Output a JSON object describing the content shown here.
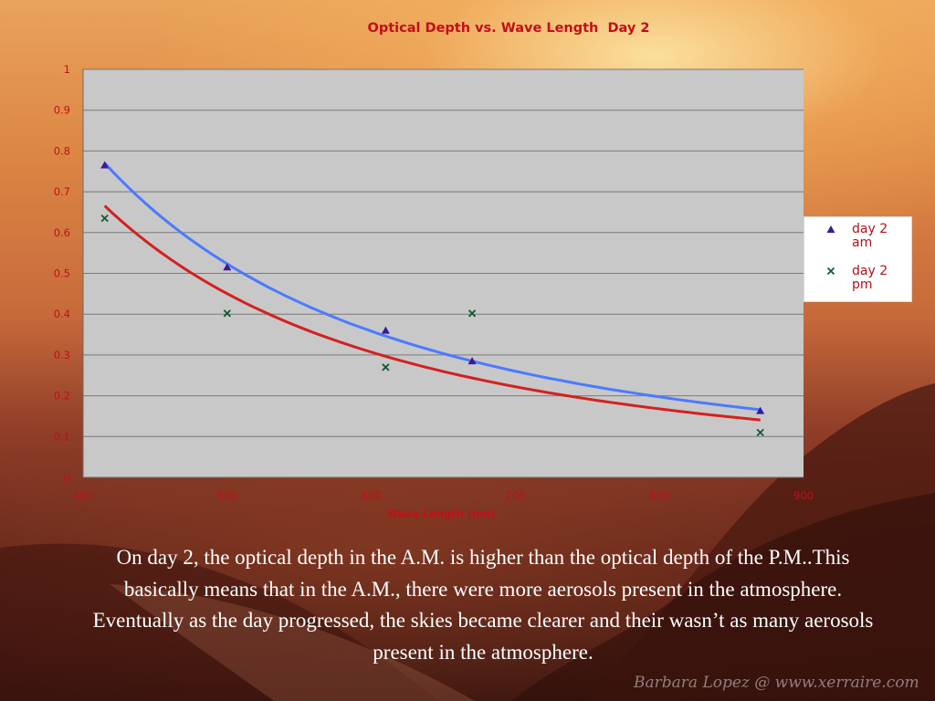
{
  "chart_data": {
    "type": "scatter",
    "title": "Optical Depth vs. Wave Length  Day 2",
    "xlabel": "Wave Length (nm)",
    "ylabel": "",
    "xlim": [
      400,
      900
    ],
    "ylim": [
      0,
      1
    ],
    "x_ticks": [
      "400",
      "500",
      "600",
      "700",
      "800",
      "900"
    ],
    "y_ticks": [
      "0",
      "0.1",
      "0.2",
      "0.3",
      "0.4",
      "0.5",
      "0.6",
      "0.7",
      "0.8",
      "0.9",
      "1"
    ],
    "grid": true,
    "legend_position": "right",
    "series": [
      {
        "name": "day 2 am",
        "marker": "triangle",
        "marker_color": "#3a1a9a",
        "trendline": "power",
        "trendline_color": "#4a7bff",
        "x": [
          415,
          500,
          610,
          670,
          870
        ],
        "y": [
          0.765,
          0.515,
          0.36,
          0.285,
          0.163
        ]
      },
      {
        "name": "day 2 pm",
        "marker": "x",
        "marker_color": "#145a30",
        "trendline": "power",
        "trendline_color": "#d42020",
        "x": [
          415,
          500,
          610,
          670,
          870
        ],
        "y": [
          0.635,
          0.402,
          0.27,
          0.402,
          0.11
        ]
      }
    ]
  },
  "legend": {
    "am_label": "day 2 am",
    "pm_label": "day 2 pm"
  },
  "caption": "On day 2, the optical depth in the A.M. is higher than the optical depth of the P.M..This basically means that in the A.M., there were more aerosols present in the atmosphere. Eventually as the day progressed, the skies became clearer and their wasn’t as many aerosols present in the atmosphere.",
  "watermark": "Barbara Lopez @ www.xerraire.com"
}
